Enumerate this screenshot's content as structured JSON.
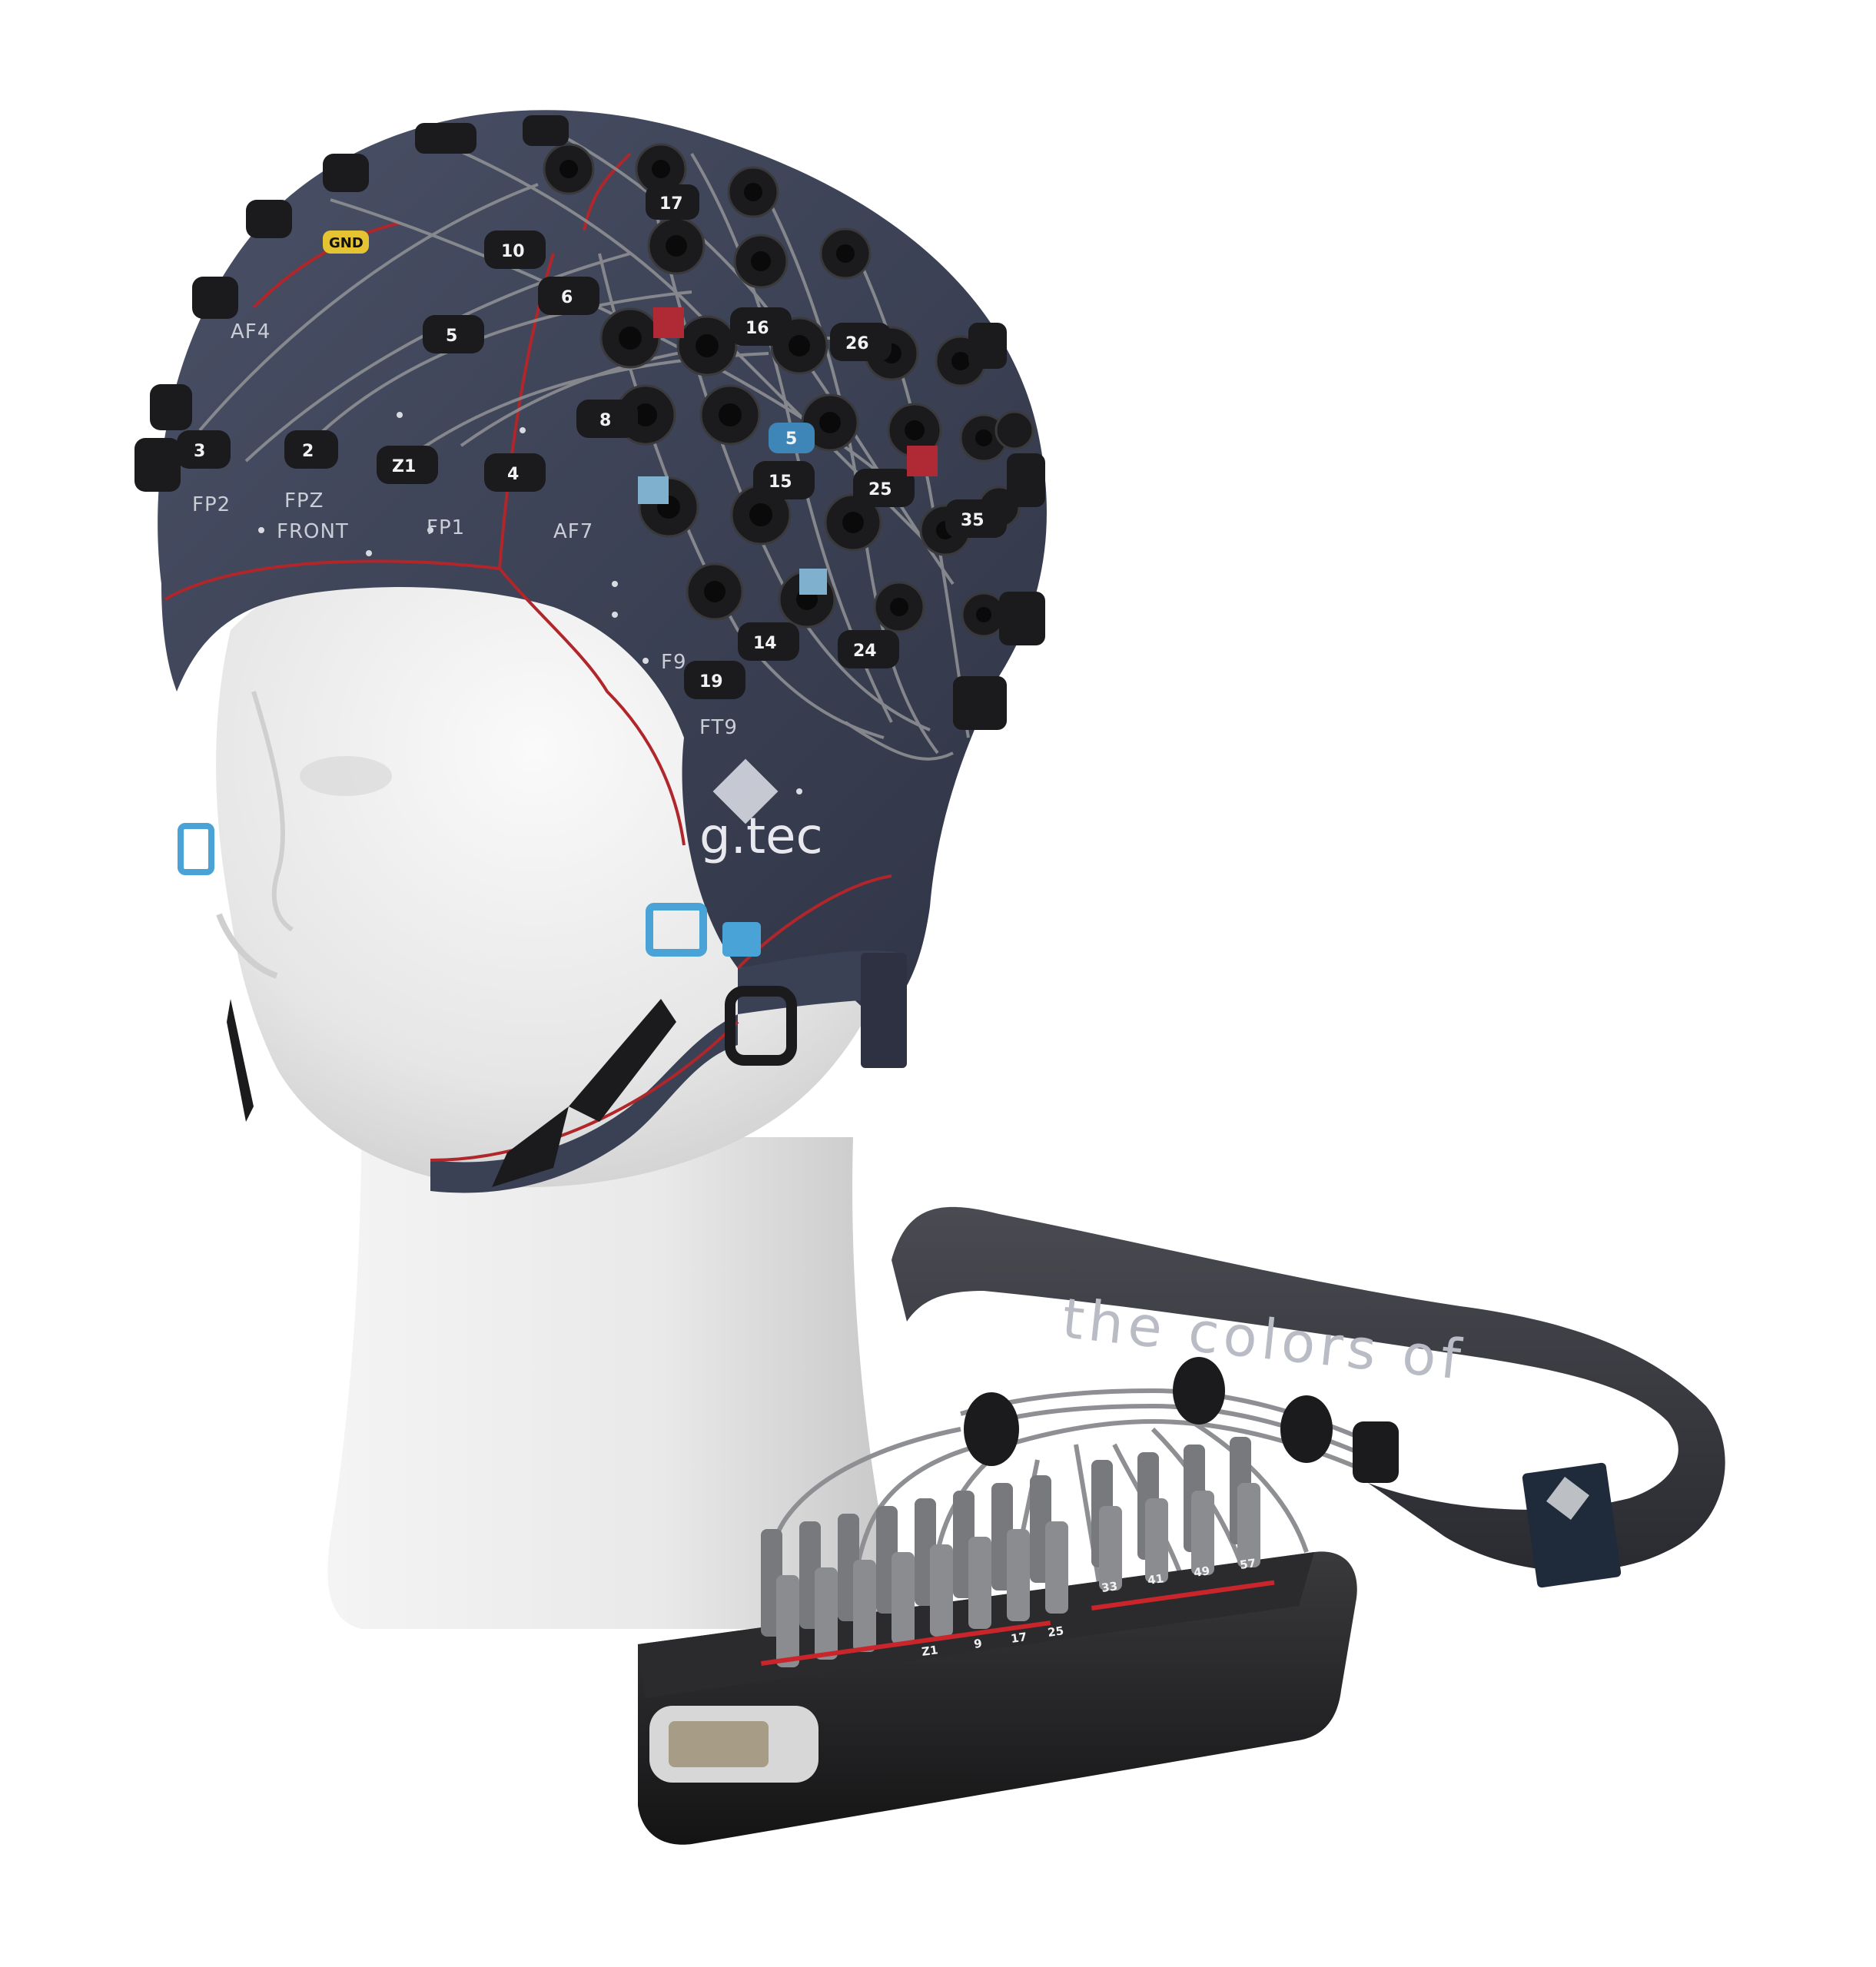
{
  "cap_labels": {
    "af4": "AF4",
    "fp2": "FP2",
    "fpz": "FPZ",
    "fp1": "FP1",
    "af7": "AF7",
    "front": "FRONT",
    "f9": "F9",
    "ft9": "FT9"
  },
  "gnd_label": "GND",
  "electrodes": [
    "3",
    "2",
    "Z1",
    "4",
    "5",
    "10",
    "6",
    "8",
    "16",
    "26",
    "15",
    "25",
    "35",
    "14",
    "24",
    "19",
    "17",
    "5"
  ],
  "cap_brand": "g.tec",
  "cable_sleeve": {
    "tagline": "the colors of"
  },
  "connector_box": {
    "channel_labels": [
      "Z1",
      "9",
      "17",
      "25",
      "33",
      "41",
      "49",
      "57"
    ]
  },
  "colors": {
    "cap": "#3b4154",
    "seam": "#b0262a",
    "electrode": "#1b1b1d",
    "wire": "#8d8f92",
    "head": "#ececec",
    "box": "#232325",
    "connector_pin": "#77797c",
    "clip": "#4aa3d6"
  }
}
